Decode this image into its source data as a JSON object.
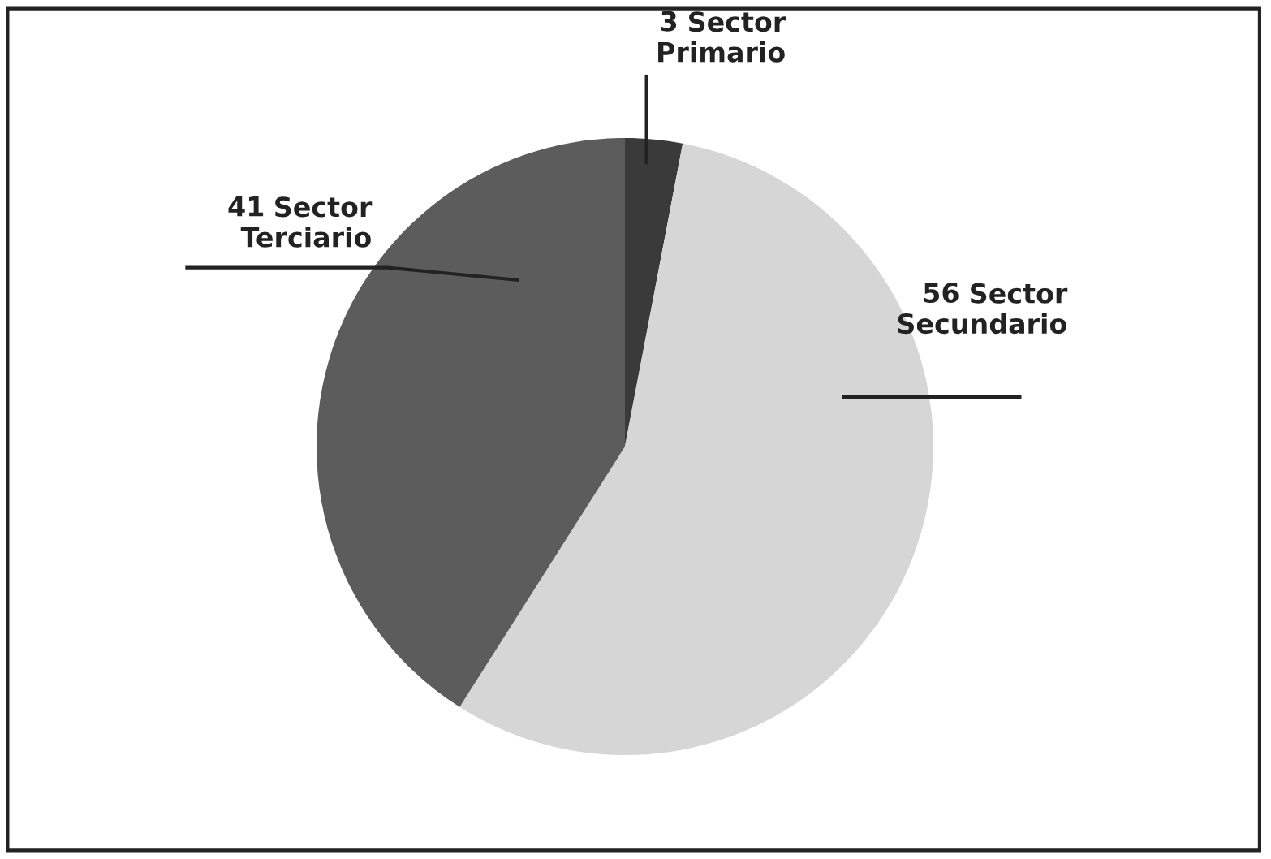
{
  "chart_data": {
    "type": "pie",
    "categories": [
      "Sector Primario",
      "Sector Secundario",
      "Sector Terciario"
    ],
    "values": [
      3,
      56,
      41
    ],
    "colors": [
      "#3a3a3a",
      "#d6d6d6",
      "#5c5c5c"
    ],
    "data_labels": true,
    "legend": false
  }
}
